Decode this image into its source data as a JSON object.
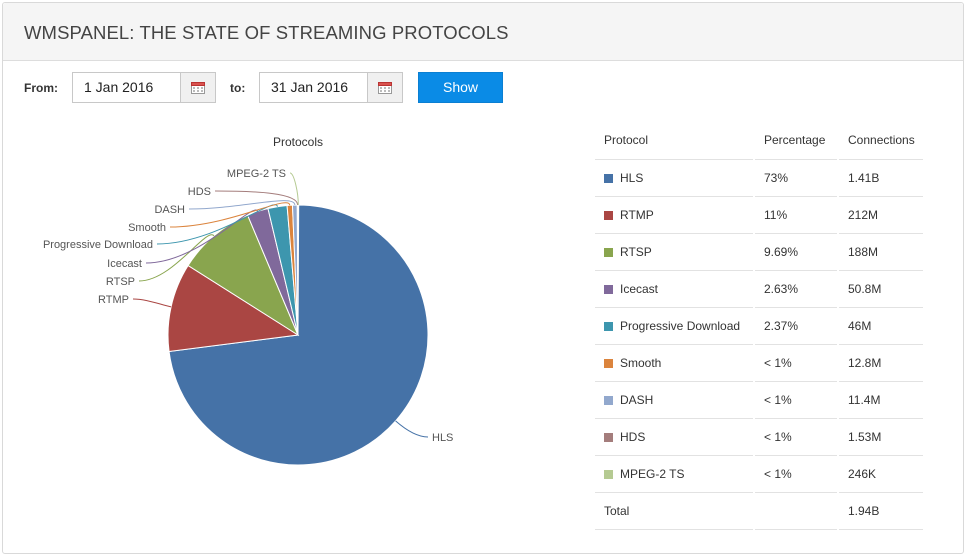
{
  "header": {
    "title": "WMSPANEL: THE STATE OF STREAMING PROTOCOLS"
  },
  "filters": {
    "from_label": "From:",
    "from_value": "1 Jan 2016",
    "to_label": "to:",
    "to_value": "31 Jan 2016",
    "show_label": "Show",
    "calendar_icon": "calendar-icon"
  },
  "colors": {
    "accent": "#0a8be6",
    "HLS": "#4572a7",
    "RTMP": "#aa4643",
    "RTSP": "#89a54e",
    "Icecast": "#80699b",
    "Progressive Download": "#3d96ae",
    "Smooth": "#db843d",
    "DASH": "#92a8cd",
    "HDS": "#a47d7c",
    "MPEG-2 TS": "#b5ca92"
  },
  "chart_data": {
    "type": "pie",
    "title": "Protocols",
    "series": [
      {
        "name": "HLS",
        "value": 73
      },
      {
        "name": "RTMP",
        "value": 11
      },
      {
        "name": "RTSP",
        "value": 9.69
      },
      {
        "name": "Icecast",
        "value": 2.63
      },
      {
        "name": "Progressive Download",
        "value": 2.37
      },
      {
        "name": "Smooth",
        "value": 0.66
      },
      {
        "name": "DASH",
        "value": 0.59
      },
      {
        "name": "HDS",
        "value": 0.08
      },
      {
        "name": "MPEG-2 TS",
        "value": 0.01
      }
    ]
  },
  "table": {
    "headers": [
      "Protocol",
      "Percentage",
      "Connections"
    ],
    "rows": [
      {
        "protocol": "HLS",
        "percentage": "73%",
        "connections": "1.41B"
      },
      {
        "protocol": "RTMP",
        "percentage": "11%",
        "connections": "212M"
      },
      {
        "protocol": "RTSP",
        "percentage": "9.69%",
        "connections": "188M"
      },
      {
        "protocol": "Icecast",
        "percentage": "2.63%",
        "connections": "50.8M"
      },
      {
        "protocol": "Progressive Download",
        "percentage": "2.37%",
        "connections": "46M"
      },
      {
        "protocol": "Smooth",
        "percentage": "< 1%",
        "connections": "12.8M"
      },
      {
        "protocol": "DASH",
        "percentage": "< 1%",
        "connections": "11.4M"
      },
      {
        "protocol": "HDS",
        "percentage": "< 1%",
        "connections": "1.53M"
      },
      {
        "protocol": "MPEG-2 TS",
        "percentage": "< 1%",
        "connections": "246K"
      }
    ],
    "total": {
      "label": "Total",
      "percentage": "",
      "connections": "1.94B"
    }
  }
}
